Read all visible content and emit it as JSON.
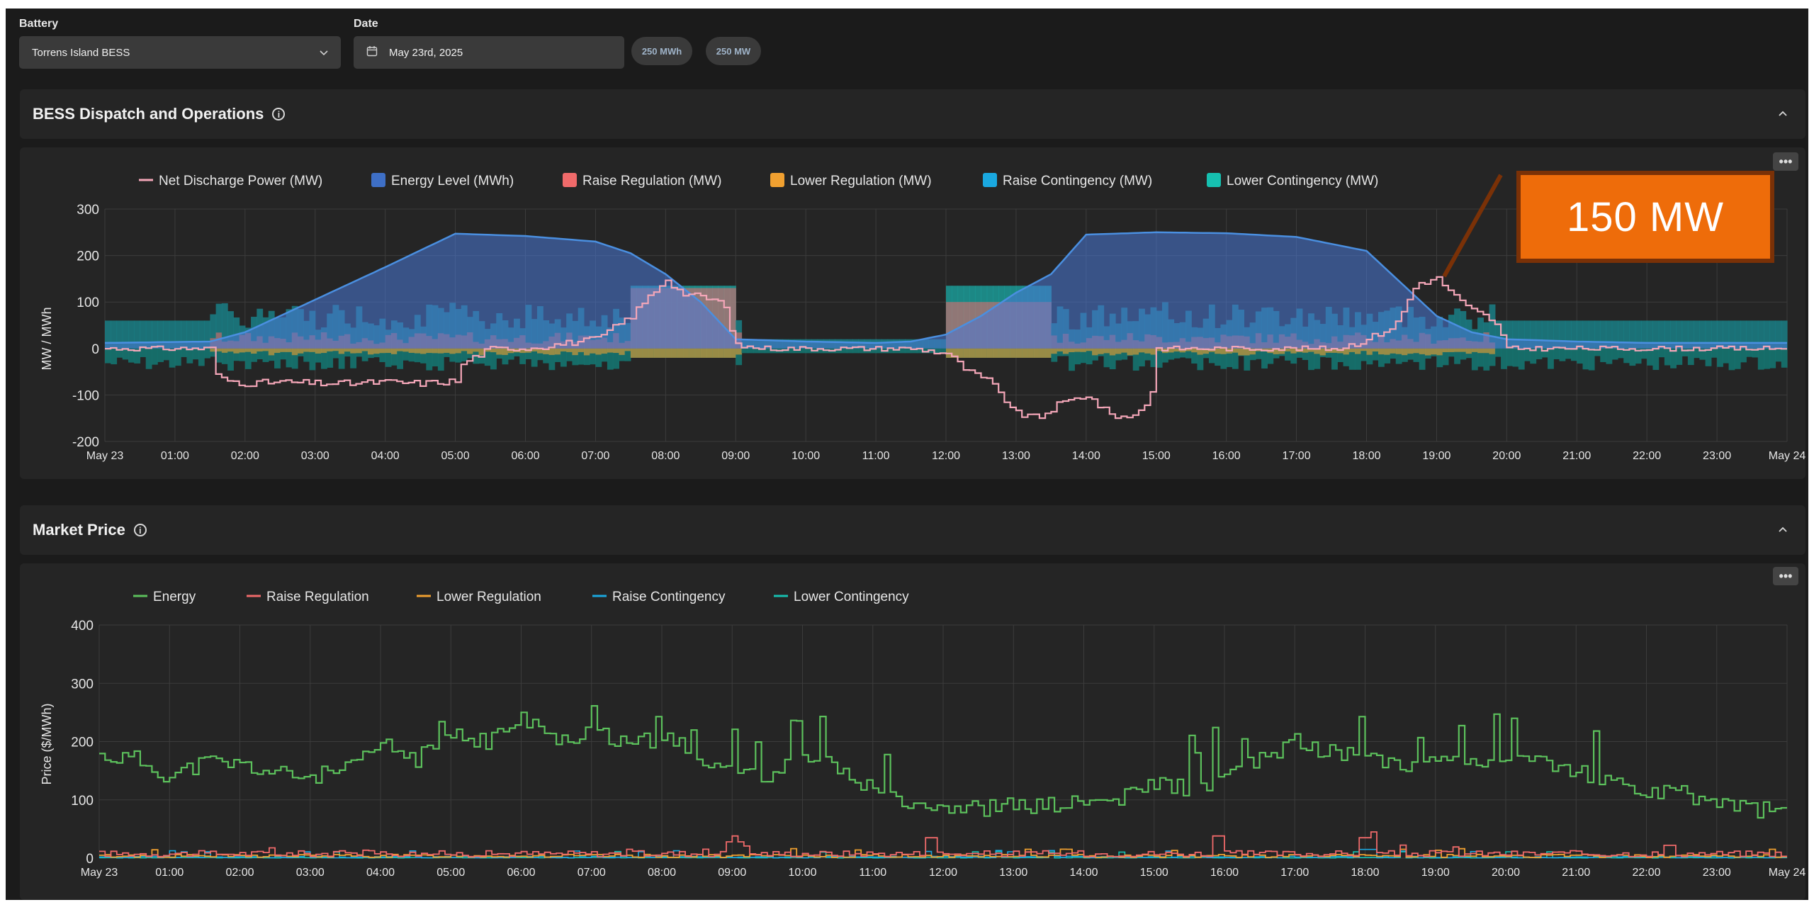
{
  "controls": {
    "battery_label": "Battery",
    "battery_value": "Torrens Island BESS",
    "date_label": "Date",
    "date_value": "May 23rd, 2025",
    "capacity_mwh": "250 MWh",
    "capacity_mw": "250 MW"
  },
  "section1": {
    "title": "BESS Dispatch and Operations"
  },
  "section2": {
    "title": "Market Price"
  },
  "annotation": {
    "text": "150 MW"
  },
  "menu_label": "•••",
  "colors": {
    "net_discharge": "#f4a6b8",
    "energy_level": "#3e6fc6",
    "energy_line": "#4a8fe0",
    "raise_regulation": "#f06a6a",
    "lower_regulation": "#f0a030",
    "raise_contingency": "#1aa8e0",
    "lower_contingency": "#16c0b0",
    "energy_price": "#5cc15c",
    "annotation": "#ee6c0a"
  },
  "chart_data": [
    {
      "type": "area",
      "ylabel": "MW / MWh",
      "ylim": [
        -200,
        300
      ],
      "yticks": [
        300,
        200,
        100,
        0,
        -100,
        -200
      ],
      "xticks": [
        "May 23",
        "01:00",
        "02:00",
        "03:00",
        "04:00",
        "05:00",
        "06:00",
        "07:00",
        "08:00",
        "09:00",
        "10:00",
        "11:00",
        "12:00",
        "13:00",
        "14:00",
        "15:00",
        "16:00",
        "17:00",
        "18:00",
        "19:00",
        "20:00",
        "21:00",
        "22:00",
        "23:00",
        "May 24"
      ],
      "legend": [
        "Net Discharge Power (MW)",
        "Energy Level (MWh)",
        "Raise Regulation (MW)",
        "Lower Regulation (MW)",
        "Raise Contingency (MW)",
        "Lower Contingency (MW)"
      ],
      "legend_position": "top",
      "grid": true,
      "energy_level_mwh": {
        "x_hours": [
          0,
          1.5,
          2,
          3,
          4,
          5,
          6,
          7,
          7.5,
          8,
          8.5,
          9,
          10,
          11,
          11.5,
          12,
          12.5,
          13,
          13.5,
          14,
          15,
          16,
          17,
          18,
          18.5,
          19,
          19.5,
          20,
          21,
          22,
          23,
          24
        ],
        "values": [
          12,
          15,
          35,
          105,
          175,
          247,
          242,
          230,
          205,
          160,
          100,
          20,
          15,
          12,
          15,
          30,
          70,
          120,
          160,
          245,
          250,
          248,
          240,
          210,
          140,
          70,
          35,
          20,
          15,
          12,
          12,
          12
        ]
      },
      "net_discharge_mw": {
        "x_hours": [
          0,
          1.5,
          1.6,
          2,
          2.5,
          3,
          3.5,
          4,
          4.5,
          5,
          5.1,
          5.5,
          6,
          6.5,
          7,
          7.5,
          7.8,
          8,
          8.2,
          8.5,
          8.8,
          9,
          9.5,
          10,
          11,
          11.5,
          12,
          12.3,
          12.6,
          13,
          13.3,
          13.6,
          14,
          14.3,
          14.6,
          14.9,
          15,
          16,
          17,
          17.6,
          18,
          18.4,
          18.7,
          19,
          19.4,
          19.8,
          20,
          21,
          22,
          23,
          24
        ],
        "values": [
          0,
          0,
          -65,
          -75,
          -72,
          -75,
          -75,
          -72,
          -75,
          -70,
          -30,
          0,
          0,
          10,
          20,
          70,
          120,
          150,
          120,
          110,
          100,
          5,
          0,
          0,
          0,
          0,
          -10,
          -50,
          -70,
          -140,
          -150,
          -120,
          -100,
          -140,
          -150,
          -110,
          0,
          0,
          0,
          0,
          20,
          50,
          140,
          150,
          90,
          60,
          0,
          0,
          0,
          0,
          0
        ]
      },
      "raise_regulation_band_mw": {
        "segments": [
          {
            "from": 7.5,
            "to": 9,
            "level": 130
          },
          {
            "from": 12,
            "to": 13.5,
            "level": 100
          }
        ],
        "typical": 25
      },
      "lower_regulation_band_mw": {
        "typical": -10
      },
      "raise_contingency_band_mw": {
        "typical_range": [
          40,
          100
        ]
      },
      "lower_contingency_band_mw": {
        "typical": -40
      }
    },
    {
      "type": "line",
      "ylabel": "Price ($/MWh)",
      "ylim": [
        0,
        400
      ],
      "yticks": [
        400,
        300,
        200,
        100,
        0
      ],
      "xticks": [
        "May 23",
        "01:00",
        "02:00",
        "03:00",
        "04:00",
        "05:00",
        "06:00",
        "07:00",
        "08:00",
        "09:00",
        "10:00",
        "11:00",
        "12:00",
        "13:00",
        "14:00",
        "15:00",
        "16:00",
        "17:00",
        "18:00",
        "19:00",
        "20:00",
        "21:00",
        "22:00",
        "23:00",
        "May 24"
      ],
      "legend": [
        "Energy",
        "Raise Regulation",
        "Lower Regulation",
        "Raise Contingency",
        "Lower Contingency"
      ],
      "legend_position": "top",
      "grid": true,
      "energy_price": {
        "x_hours": [
          0,
          0.5,
          1,
          1.5,
          2,
          2.5,
          3,
          3.5,
          4,
          4.5,
          5,
          5.5,
          6,
          6.5,
          7,
          7.5,
          8,
          8.5,
          9,
          9.5,
          10,
          10.5,
          11,
          11.5,
          12,
          12.5,
          13,
          13.5,
          14,
          14.5,
          15,
          15.5,
          16,
          16.5,
          17,
          17.5,
          18,
          18.5,
          19,
          19.5,
          20,
          20.5,
          21,
          21.5,
          22,
          22.5,
          23,
          23.5,
          24
        ],
        "values": [
          175,
          170,
          140,
          165,
          160,
          145,
          140,
          150,
          195,
          170,
          210,
          200,
          240,
          200,
          220,
          190,
          210,
          175,
          150,
          145,
          170,
          155,
          120,
          100,
          90,
          85,
          90,
          90,
          95,
          100,
          130,
          120,
          140,
          170,
          200,
          180,
          180,
          160,
          175,
          170,
          165,
          165,
          150,
          130,
          110,
          110,
          95,
          85,
          80
        ]
      },
      "raise_regulation_price": {
        "typical": 8,
        "spikes": [
          {
            "x": 9,
            "value": 28
          },
          {
            "x": 11.8,
            "value": 35
          },
          {
            "x": 15.9,
            "value": 38
          },
          {
            "x": 18,
            "value": 35
          },
          {
            "x": 22.3,
            "value": 22
          }
        ]
      },
      "lower_regulation_price": {
        "typical": 4
      },
      "raise_contingency_price": {
        "typical": 2,
        "spikes": [
          {
            "x": 18,
            "value": 15
          }
        ]
      },
      "lower_contingency_price": {
        "typical": 1
      }
    }
  ]
}
